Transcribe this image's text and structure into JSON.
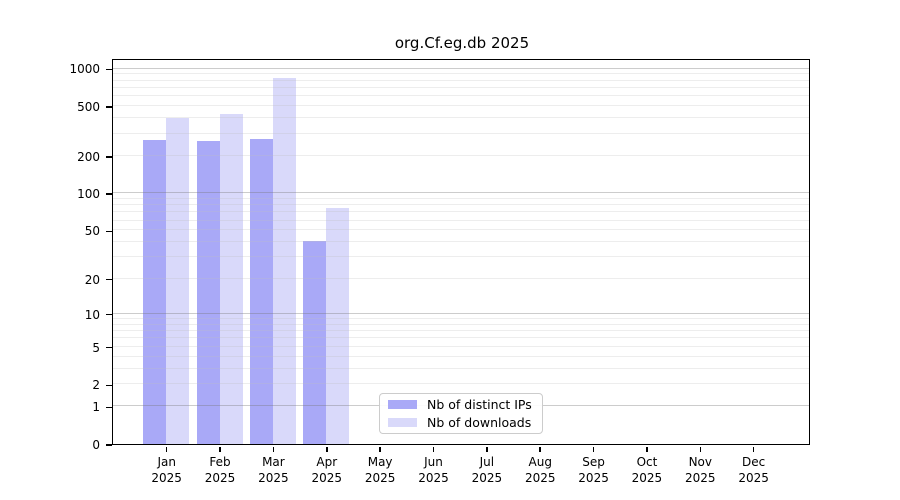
{
  "title": "org.Cf.eg.db 2025",
  "chart_data": {
    "type": "bar",
    "title": "org.Cf.eg.db 2025",
    "categories": [
      "Jan 2025",
      "Feb 2025",
      "Mar 2025",
      "Apr 2025",
      "May 2025",
      "Jun 2025",
      "Jul 2025",
      "Aug 2025",
      "Sep 2025",
      "Oct 2025",
      "Nov 2025",
      "Dec 2025"
    ],
    "series": [
      {
        "name": "Nb of distinct IPs",
        "color": "#a9a9f7",
        "values": [
          270,
          265,
          275,
          41,
          null,
          null,
          null,
          null,
          null,
          null,
          null,
          null
        ]
      },
      {
        "name": "Nb of downloads",
        "color": "#d9d9fa",
        "values": [
          400,
          435,
          845,
          76,
          null,
          null,
          null,
          null,
          null,
          null,
          null,
          null
        ]
      }
    ],
    "yticks": [
      0,
      1,
      2,
      5,
      10,
      20,
      50,
      100,
      200,
      500,
      1000
    ],
    "yscale": "log10(value+1)",
    "ylim": [
      0,
      1190
    ],
    "grid": "horizontal, major at powers of 10, minor at 2-9 mantissas",
    "legend_position": "bottom-center"
  },
  "legend": {
    "items": [
      {
        "label": "Nb of distinct IPs",
        "color": "#a9a9f7"
      },
      {
        "label": "Nb of downloads",
        "color": "#d9d9fa"
      }
    ]
  },
  "colors": {
    "background": "#ffffff",
    "spine": "#000000",
    "grid_major": "#cbcbcb",
    "grid_minor": "#ededed",
    "legend_border": "#cccccc",
    "text": "#000000"
  }
}
